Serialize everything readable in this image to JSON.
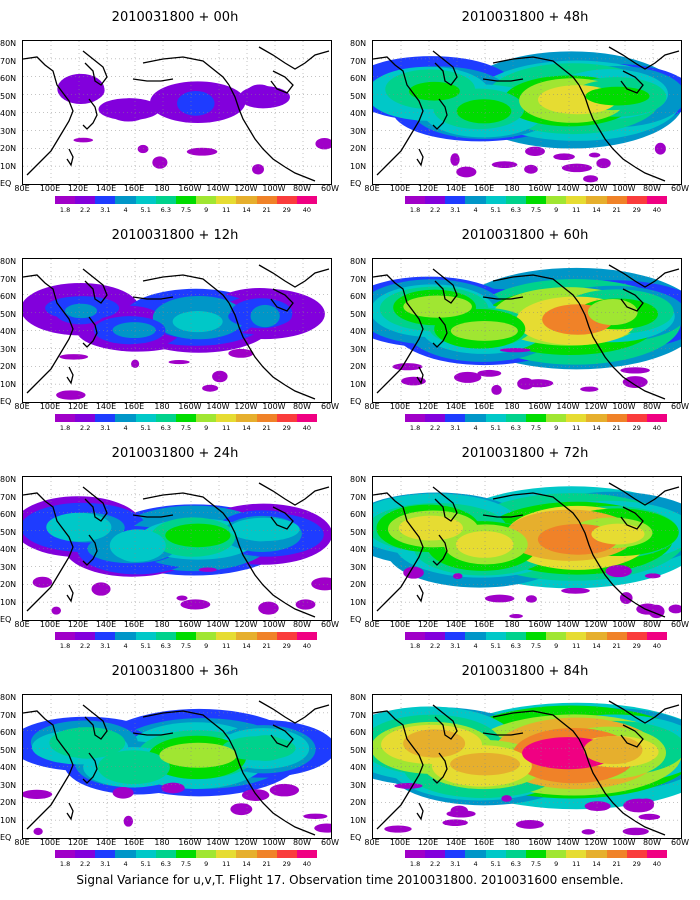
{
  "caption": "Signal Variance for u,v,T. Flight 17. Observation time 2010031800. 2010031600 ensemble.",
  "lat_labels": [
    "80N",
    "70N",
    "60N",
    "50N",
    "40N",
    "30N",
    "20N",
    "10N",
    "EQ"
  ],
  "lon_labels": [
    "80E",
    "100E",
    "120E",
    "140E",
    "160E",
    "180",
    "160W",
    "140W",
    "120W",
    "100W",
    "80W",
    "60W"
  ],
  "colorbar": {
    "labels": [
      "1.8",
      "2.2",
      "3.1",
      "4",
      "5.1",
      "6.3",
      "7.5",
      "9",
      "11",
      "14",
      "21",
      "29",
      "40"
    ],
    "colors": [
      "#a000c8",
      "#8200dc",
      "#1e3cff",
      "#0096c8",
      "#00c8c8",
      "#00d28c",
      "#00dc00",
      "#a0e632",
      "#e6dc32",
      "#e6af2d",
      "#f08228",
      "#fa3c3c",
      "#f00082"
    ]
  },
  "panels": [
    {
      "title": "2010031800 + 00h",
      "intensity": 0.15
    },
    {
      "title": "2010031800 + 48h",
      "intensity": 0.65
    },
    {
      "title": "2010031800 + 12h",
      "intensity": 0.3
    },
    {
      "title": "2010031800 + 60h",
      "intensity": 0.75
    },
    {
      "title": "2010031800 + 24h",
      "intensity": 0.45
    },
    {
      "title": "2010031800 + 72h",
      "intensity": 0.8
    },
    {
      "title": "2010031800 + 36h",
      "intensity": 0.55
    },
    {
      "title": "2010031800 + 84h",
      "intensity": 0.9
    }
  ]
}
